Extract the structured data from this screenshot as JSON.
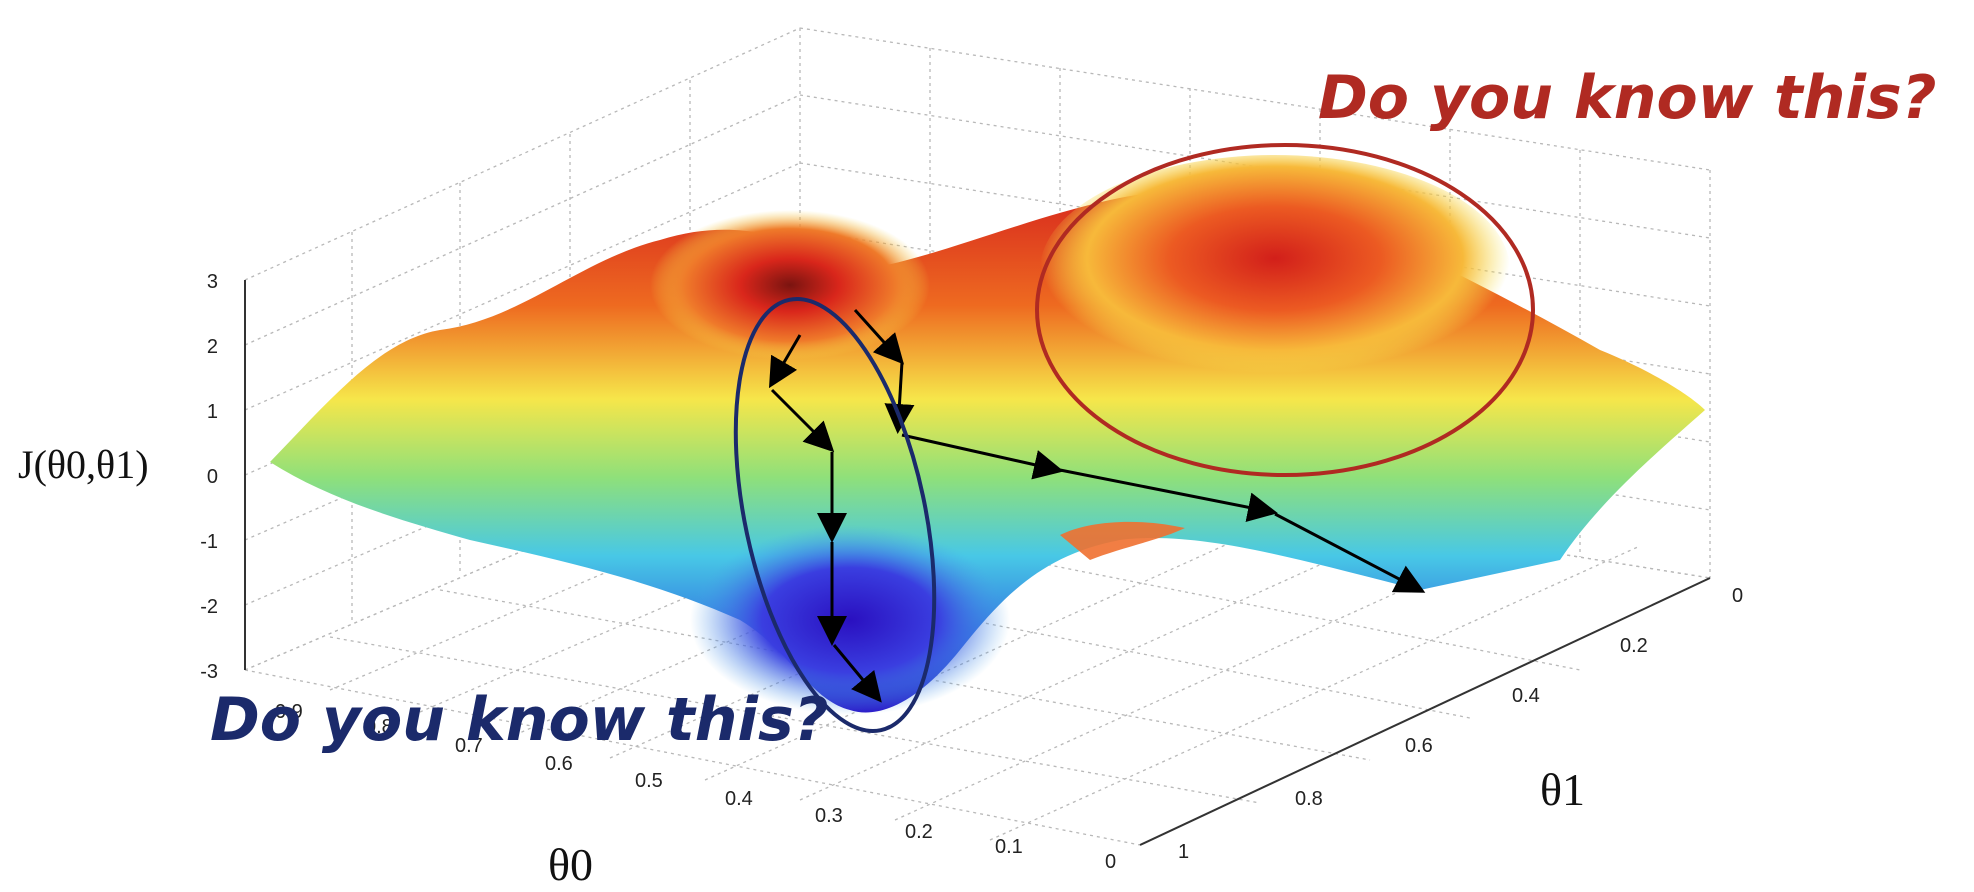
{
  "chart_data": {
    "type": "surface",
    "zlabel": "J(θ0,θ1)",
    "xlabel": "θ0",
    "ylabel": "θ1",
    "z_ticks": [
      "3",
      "2",
      "1",
      "0",
      "-1",
      "-2",
      "-3"
    ],
    "theta0_ticks": [
      "0.9",
      "0.8",
      "0.7",
      "0.6",
      "0.5",
      "0.4",
      "0.3",
      "0.2",
      "0.1",
      "0"
    ],
    "theta1_ticks": [
      "0",
      "0.2",
      "0.4",
      "0.6",
      "0.8",
      "1"
    ],
    "zlim": [
      -3,
      3
    ],
    "grid": true
  },
  "annotations": {
    "top_right": "Do you know this?",
    "bottom_left": "Do you know this?",
    "top_color": "#b02a22",
    "bottom_color": "#1b2a6b"
  }
}
